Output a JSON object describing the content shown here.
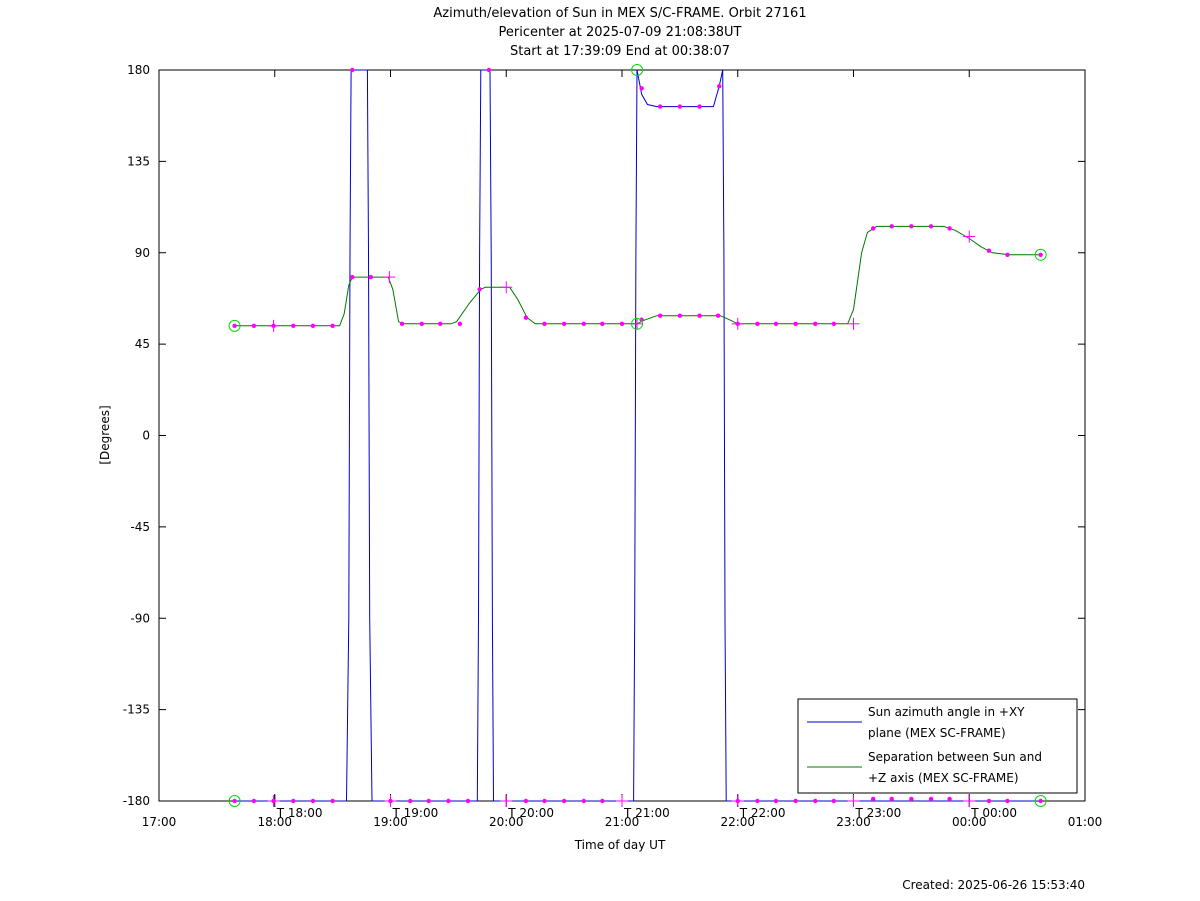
{
  "chart_data": {
    "type": "line",
    "title": "Azimuth/elevation of Sun in MEX S/C-FRAME.  Orbit 27161",
    "subtitle_1": "Pericenter at 2025-07-09 21:08:38UT",
    "subtitle_2": "Start at 17:39:09 End at 00:38:07",
    "xlabel": "Time of day UT",
    "ylabel": "[Degrees]",
    "footer": "Created: 2025-06-26 15:53:40",
    "xlim": [
      17.0,
      25.0
    ],
    "ylim": [
      -180,
      180
    ],
    "x_ticks": [
      {
        "v": 17,
        "label": "17:00"
      },
      {
        "v": 18,
        "label": "18:00"
      },
      {
        "v": 19,
        "label": "19:00"
      },
      {
        "v": 20,
        "label": "20:00"
      },
      {
        "v": 21,
        "label": "21:00"
      },
      {
        "v": 22,
        "label": "22:00"
      },
      {
        "v": 23,
        "label": "23:00"
      },
      {
        "v": 24,
        "label": "00:00"
      },
      {
        "v": 25,
        "label": "01:00"
      }
    ],
    "y_ticks": [
      {
        "v": 180,
        "label": "180"
      },
      {
        "v": 135,
        "label": "135"
      },
      {
        "v": 90,
        "label": "90"
      },
      {
        "v": 45,
        "label": "45"
      },
      {
        "v": 0,
        "label": "0"
      },
      {
        "v": -45,
        "label": "-45"
      },
      {
        "v": -90,
        "label": "-90"
      },
      {
        "v": -135,
        "label": "-135"
      },
      {
        "v": -180,
        "label": "-180"
      }
    ],
    "event_markers": [
      {
        "v": 18.0,
        "label": "T 18:00"
      },
      {
        "v": 19.0,
        "label": "T 19:00"
      },
      {
        "v": 20.0,
        "label": "T 20:00"
      },
      {
        "v": 21.0,
        "label": "T 21:00"
      },
      {
        "v": 22.0,
        "label": "T 22:00"
      },
      {
        "v": 23.0,
        "label": "T 23:00"
      },
      {
        "v": 24.0,
        "label": "T 00:00"
      }
    ],
    "grid": false,
    "legend_position": "bottom-right",
    "series": [
      {
        "name": "Sun azimuth angle in +XY plane (MEX SC-FRAME)",
        "name_line1": "Sun azimuth angle in +XY",
        "name_line2": "plane (MEX SC-FRAME)",
        "color": "#0000cc",
        "points": [
          [
            17.653,
            -180
          ],
          [
            18.62,
            -180
          ],
          [
            18.64,
            -90
          ],
          [
            18.65,
            90
          ],
          [
            18.66,
            180
          ],
          [
            18.8,
            180
          ],
          [
            18.81,
            90
          ],
          [
            18.82,
            -90
          ],
          [
            18.84,
            -180
          ],
          [
            19.75,
            -180
          ],
          [
            19.76,
            -90
          ],
          [
            19.77,
            90
          ],
          [
            19.78,
            180
          ],
          [
            19.86,
            180
          ],
          [
            19.87,
            90
          ],
          [
            19.88,
            -90
          ],
          [
            19.89,
            -180
          ],
          [
            21.1,
            -180
          ],
          [
            21.11,
            -90
          ],
          [
            21.12,
            90
          ],
          [
            21.13,
            180
          ],
          [
            21.17,
            168
          ],
          [
            21.22,
            163
          ],
          [
            21.3,
            162
          ],
          [
            21.4,
            162
          ],
          [
            21.6,
            162
          ],
          [
            21.79,
            162
          ],
          [
            21.84,
            172
          ],
          [
            21.87,
            180
          ],
          [
            21.88,
            90
          ],
          [
            21.89,
            -90
          ],
          [
            21.9,
            -180
          ],
          [
            24.617,
            -180
          ]
        ]
      },
      {
        "name": "Separation between Sun and +Z axis (MEX SC-FRAME)",
        "name_line1": "Separation between Sun and",
        "name_line2": "+Z axis (MEX SC-FRAME)",
        "color": "#007700",
        "points": [
          [
            17.653,
            54
          ],
          [
            18.56,
            54
          ],
          [
            18.6,
            60
          ],
          [
            18.64,
            74
          ],
          [
            18.67,
            78
          ],
          [
            18.7,
            78
          ],
          [
            18.98,
            78
          ],
          [
            19.02,
            72
          ],
          [
            19.07,
            56
          ],
          [
            19.12,
            55
          ],
          [
            19.52,
            55
          ],
          [
            19.57,
            56
          ],
          [
            19.68,
            65
          ],
          [
            19.78,
            72
          ],
          [
            19.82,
            73
          ],
          [
            20.03,
            73
          ],
          [
            20.1,
            67
          ],
          [
            20.18,
            58
          ],
          [
            20.25,
            55
          ],
          [
            21.13,
            55
          ],
          [
            21.2,
            57
          ],
          [
            21.3,
            59
          ],
          [
            21.4,
            59
          ],
          [
            21.85,
            59
          ],
          [
            21.93,
            57
          ],
          [
            22.0,
            55
          ],
          [
            22.95,
            55
          ],
          [
            23.0,
            62
          ],
          [
            23.07,
            90
          ],
          [
            23.12,
            100
          ],
          [
            23.2,
            103
          ],
          [
            23.35,
            103
          ],
          [
            23.78,
            103
          ],
          [
            23.88,
            101
          ],
          [
            24.0,
            97
          ],
          [
            24.1,
            93
          ],
          [
            24.2,
            90
          ],
          [
            24.35,
            89
          ],
          [
            24.617,
            89
          ]
        ]
      }
    ],
    "point_markers": [
      [
        17.653,
        54
      ],
      [
        17.82,
        54
      ],
      [
        17.99,
        54
      ],
      [
        18.16,
        54
      ],
      [
        18.33,
        54
      ],
      [
        18.5,
        54
      ],
      [
        18.67,
        78
      ],
      [
        18.83,
        78
      ],
      [
        19.1,
        55
      ],
      [
        19.27,
        55
      ],
      [
        19.43,
        55
      ],
      [
        19.6,
        55
      ],
      [
        19.77,
        72
      ],
      [
        20.17,
        58
      ],
      [
        20.33,
        55
      ],
      [
        20.5,
        55
      ],
      [
        20.67,
        55
      ],
      [
        20.83,
        55
      ],
      [
        21.0,
        55
      ],
      [
        21.17,
        57
      ],
      [
        21.33,
        59
      ],
      [
        21.5,
        59
      ],
      [
        21.67,
        59
      ],
      [
        21.83,
        59
      ],
      [
        22.0,
        55
      ],
      [
        22.17,
        55
      ],
      [
        22.33,
        55
      ],
      [
        22.5,
        55
      ],
      [
        22.67,
        55
      ],
      [
        22.83,
        55
      ],
      [
        23.17,
        102
      ],
      [
        23.33,
        103
      ],
      [
        23.5,
        103
      ],
      [
        23.67,
        103
      ],
      [
        23.83,
        102
      ],
      [
        24.17,
        91
      ],
      [
        24.33,
        89
      ],
      [
        24.617,
        89
      ],
      [
        17.653,
        -180
      ],
      [
        17.82,
        -180
      ],
      [
        17.99,
        -180
      ],
      [
        18.16,
        -180
      ],
      [
        18.33,
        -180
      ],
      [
        18.5,
        -180
      ],
      [
        18.67,
        180
      ],
      [
        19.0,
        -180
      ],
      [
        19.17,
        -180
      ],
      [
        19.33,
        -180
      ],
      [
        19.5,
        -180
      ],
      [
        19.67,
        -180
      ],
      [
        19.85,
        180
      ],
      [
        20.17,
        -180
      ],
      [
        20.33,
        -180
      ],
      [
        20.5,
        -180
      ],
      [
        20.67,
        -180
      ],
      [
        20.83,
        -180
      ],
      [
        21.17,
        171
      ],
      [
        21.33,
        162
      ],
      [
        21.5,
        162
      ],
      [
        21.67,
        162
      ],
      [
        21.84,
        172
      ],
      [
        22.0,
        -180
      ],
      [
        22.17,
        -180
      ],
      [
        22.33,
        -180
      ],
      [
        22.5,
        -180
      ],
      [
        22.67,
        -180
      ],
      [
        22.83,
        -180
      ],
      [
        23.17,
        -179
      ],
      [
        23.33,
        -179
      ],
      [
        23.5,
        -179
      ],
      [
        23.67,
        -179
      ],
      [
        23.83,
        -179
      ],
      [
        24.17,
        -180
      ],
      [
        24.33,
        -180
      ],
      [
        24.617,
        -180
      ]
    ],
    "cross_markers": [
      [
        17.99,
        54
      ],
      [
        18.99,
        78
      ],
      [
        20.0,
        73
      ],
      [
        21.13,
        55
      ],
      [
        22.0,
        55
      ],
      [
        23.0,
        55
      ],
      [
        24.0,
        98
      ],
      [
        17.99,
        -180
      ],
      [
        19.0,
        -180
      ],
      [
        20.0,
        -180
      ],
      [
        21.0,
        -180
      ],
      [
        22.0,
        -180
      ],
      [
        23.0,
        -180
      ],
      [
        24.0,
        -180
      ]
    ],
    "circle_markers": [
      [
        17.653,
        54
      ],
      [
        17.653,
        -180
      ],
      [
        21.13,
        55
      ],
      [
        21.13,
        180
      ],
      [
        24.617,
        89
      ],
      [
        24.617,
        -180
      ]
    ]
  }
}
